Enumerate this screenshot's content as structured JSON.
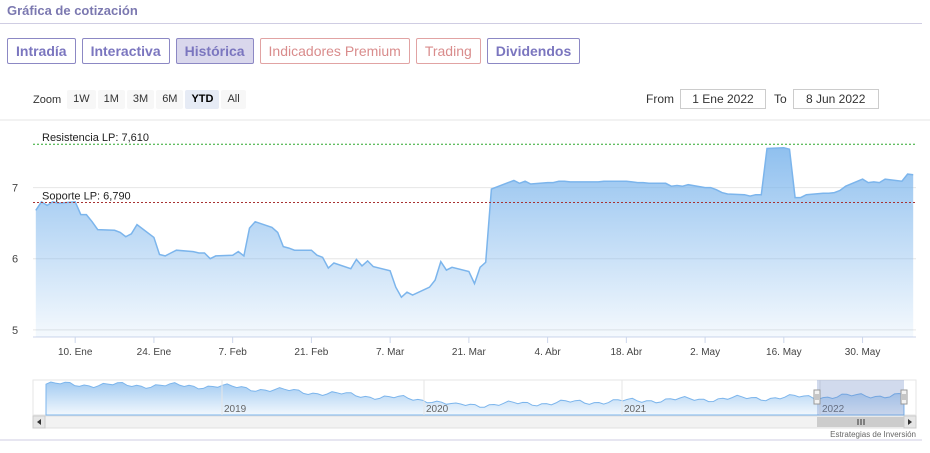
{
  "header": {
    "title": "Gráfica de cotización"
  },
  "tabs": [
    {
      "label": "Intradía",
      "active": false,
      "premium": false
    },
    {
      "label": "Interactiva",
      "active": false,
      "premium": false
    },
    {
      "label": "Histórica",
      "active": true,
      "premium": false
    },
    {
      "label": "Indicadores Premium",
      "active": false,
      "premium": true
    },
    {
      "label": "Trading",
      "active": false,
      "premium": true
    },
    {
      "label": "Dividendos",
      "active": false,
      "premium": false
    }
  ],
  "zoom": {
    "label": "Zoom",
    "buttons": [
      "1W",
      "1M",
      "3M",
      "6M",
      "YTD",
      "All"
    ],
    "selected": "YTD"
  },
  "range": {
    "from_label": "From",
    "from_value": "1 Ene 2022",
    "to_label": "To",
    "to_value": "8 Jun 2022"
  },
  "credits": "Estrategias de Inversión",
  "colors": {
    "line": "#7cb5ec",
    "resistance": "#2ea82e",
    "support": "#a83232",
    "accent": "#7b76bf"
  },
  "chart_data": {
    "type": "area",
    "y_ticks": [
      "5",
      "6",
      "7"
    ],
    "ylim": [
      4.9,
      7.95
    ],
    "x_ticks": [
      "10. Ene",
      "24. Ene",
      "7. Feb",
      "21. Feb",
      "7. Mar",
      "21. Mar",
      "4. Abr",
      "18. Abr",
      "2. May",
      "16. May",
      "30. May"
    ],
    "resistance": {
      "label": "Resistencia LP: 7,610",
      "value": 7.61
    },
    "support": {
      "label": "Soporte LP: 6,790",
      "value": 6.79
    },
    "series": [
      {
        "x": [
          "2022-01-03",
          "2022-01-04",
          "2022-01-05",
          "2022-01-06",
          "2022-01-07",
          "2022-01-10",
          "2022-01-11",
          "2022-01-12",
          "2022-01-13",
          "2022-01-14",
          "2022-01-17",
          "2022-01-18",
          "2022-01-19",
          "2022-01-20",
          "2022-01-21",
          "2022-01-24",
          "2022-01-25",
          "2022-01-26",
          "2022-01-27",
          "2022-01-28",
          "2022-01-31",
          "2022-02-01",
          "2022-02-02",
          "2022-02-03",
          "2022-02-04",
          "2022-02-07",
          "2022-02-08",
          "2022-02-09",
          "2022-02-10",
          "2022-02-11",
          "2022-02-14",
          "2022-02-15",
          "2022-02-16",
          "2022-02-17",
          "2022-02-18",
          "2022-02-21",
          "2022-02-22",
          "2022-02-23",
          "2022-02-24",
          "2022-02-25",
          "2022-02-28",
          "2022-03-01",
          "2022-03-02",
          "2022-03-03",
          "2022-03-04",
          "2022-03-07",
          "2022-03-08",
          "2022-03-09",
          "2022-03-10",
          "2022-03-11",
          "2022-03-14",
          "2022-03-15",
          "2022-03-16",
          "2022-03-17",
          "2022-03-18",
          "2022-03-21",
          "2022-03-22",
          "2022-03-23",
          "2022-03-24",
          "2022-03-25",
          "2022-03-28",
          "2022-03-29",
          "2022-03-30",
          "2022-03-31",
          "2022-04-01",
          "2022-04-04",
          "2022-04-05",
          "2022-04-06",
          "2022-04-07",
          "2022-04-08",
          "2022-04-11",
          "2022-04-12",
          "2022-04-13",
          "2022-04-14",
          "2022-04-18",
          "2022-04-19",
          "2022-04-20",
          "2022-04-21",
          "2022-04-22",
          "2022-04-25",
          "2022-04-26",
          "2022-04-27",
          "2022-04-28",
          "2022-04-29",
          "2022-05-02",
          "2022-05-03",
          "2022-05-04",
          "2022-05-05",
          "2022-05-06",
          "2022-05-09",
          "2022-05-10",
          "2022-05-11",
          "2022-05-12",
          "2022-05-13",
          "2022-05-16",
          "2022-05-17",
          "2022-05-18",
          "2022-05-19",
          "2022-05-20",
          "2022-05-23",
          "2022-05-24",
          "2022-05-25",
          "2022-05-26",
          "2022-05-27",
          "2022-05-30",
          "2022-05-31",
          "2022-06-01",
          "2022-06-02",
          "2022-06-03",
          "2022-06-06",
          "2022-06-07",
          "2022-06-08"
        ],
        "values": [
          6.68,
          6.8,
          6.75,
          6.8,
          6.78,
          6.8,
          6.62,
          6.62,
          6.52,
          6.41,
          6.4,
          6.37,
          6.31,
          6.35,
          6.48,
          6.3,
          6.06,
          6.04,
          6.08,
          6.12,
          6.1,
          6.08,
          6.08,
          6.0,
          6.04,
          6.05,
          6.1,
          6.04,
          6.43,
          6.52,
          6.44,
          6.37,
          6.17,
          6.15,
          6.12,
          6.12,
          6.05,
          6.02,
          5.87,
          5.94,
          5.86,
          5.99,
          5.9,
          5.97,
          5.89,
          5.83,
          5.6,
          5.46,
          5.53,
          5.49,
          5.6,
          5.7,
          5.96,
          5.84,
          5.88,
          5.82,
          5.65,
          5.88,
          5.95,
          6.98,
          7.07,
          7.1,
          7.06,
          7.09,
          7.05,
          7.07,
          7.07,
          7.09,
          7.09,
          7.08,
          7.08,
          7.08,
          7.08,
          7.09,
          7.09,
          7.08,
          7.07,
          7.07,
          7.06,
          7.06,
          7.02,
          7.03,
          7.02,
          7.04,
          7.0,
          7.0,
          6.97,
          6.93,
          6.91,
          6.9,
          6.88,
          6.9,
          6.9,
          7.55,
          7.56,
          7.54,
          6.86,
          6.86,
          6.9,
          6.92,
          6.92,
          6.93,
          6.96,
          7.02,
          7.12,
          7.07,
          7.08,
          7.07,
          7.12,
          7.09,
          7.19,
          7.18
        ]
      }
    ],
    "navigator": {
      "x_ticks": [
        "2019",
        "2020",
        "2021",
        "2022"
      ]
    }
  }
}
